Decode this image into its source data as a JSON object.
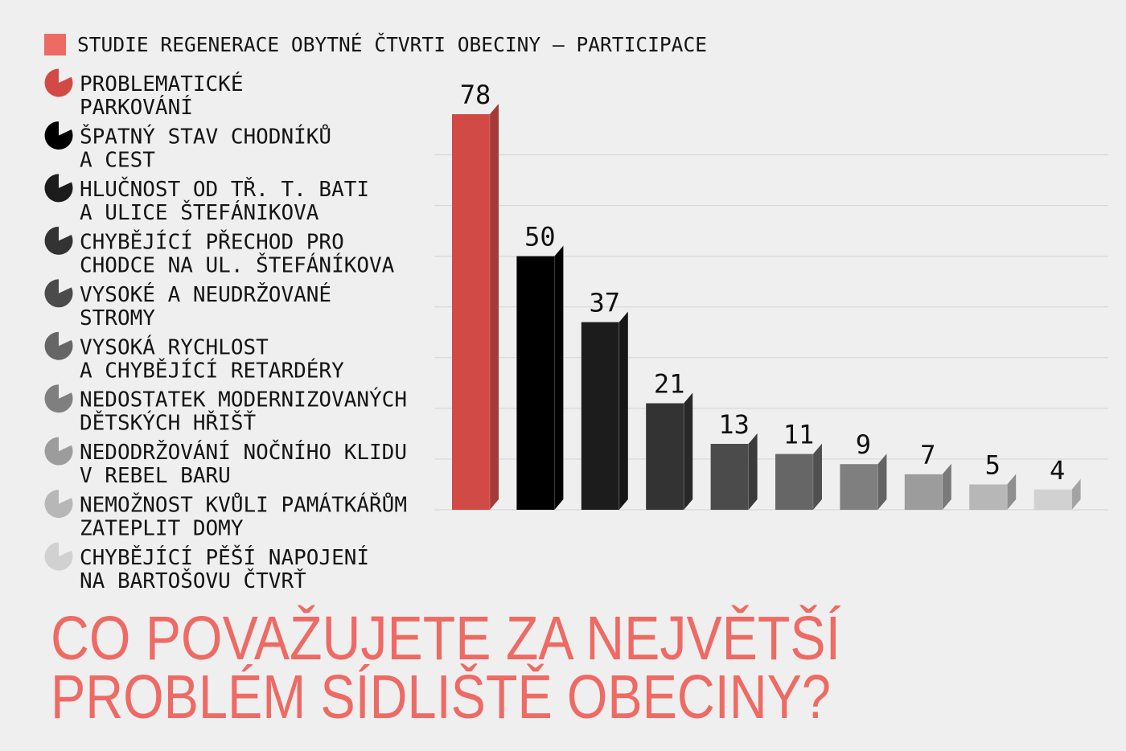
{
  "colors": {
    "accent": "#ee6a64",
    "background": "#efefef",
    "grid": "#d8d8d8"
  },
  "chart_data": {
    "type": "bar",
    "title": [
      "CO POVAŽUJETE ZA NEJVĚTŠÍ",
      "PROBLÉM SÍDLIŠTĚ OBECINY?"
    ],
    "categories": [
      [
        "PROBLEMATICKÉ",
        "PARKOVÁNÍ"
      ],
      [
        "ŠPATNÝ STAV CHODNÍKŮ",
        "A CEST"
      ],
      [
        "HLUČNOST OD TŘ. T. BATI",
        "A ULICE ŠTEFÁNIKOVA"
      ],
      [
        "CHYBĚJÍCÍ PŘECHOD PRO",
        "CHODCE NA UL. ŠTEFÁNÍKOVA"
      ],
      [
        "VYSOKÉ A NEUDRŽOVANÉ",
        "STROMY"
      ],
      [
        "VYSOKÁ RYCHLOST",
        "A CHYBĚJÍCÍ RETARDÉRY"
      ],
      [
        "NEDOSTATEK MODERNIZOVANÝCH",
        "DĚTSKÝCH HŘIŠŤ"
      ],
      [
        "NEDODRŽOVÁNÍ NOČNÍHO KLIDU",
        "V REBEL BARU"
      ],
      [
        "NEMOŽNOST KVŮLI PAMÁTKÁŘŮM",
        "ZATEPLIT DOMY"
      ],
      [
        "CHYBĚJÍCÍ PĚŠÍ NAPOJENÍ",
        "NA BARTOŠOVU ČTVRŤ"
      ]
    ],
    "series": [
      {
        "name": "STUDIE REGENERACE OBYTNÉ ČTVRTI OBECINY – PARTICIPACE",
        "values": [
          78,
          50,
          37,
          21,
          13,
          11,
          9,
          7,
          5,
          4
        ],
        "colors": [
          "#d24a46",
          "#000000",
          "#1c1c1c",
          "#333333",
          "#4b4b4b",
          "#666666",
          "#7f7f7f",
          "#9c9c9c",
          "#b7b7b7",
          "#d1d1d1"
        ]
      }
    ],
    "ylim": [
      0,
      80
    ],
    "grid": true,
    "legend": "left",
    "legend_icon": "pie-chart-icon"
  }
}
